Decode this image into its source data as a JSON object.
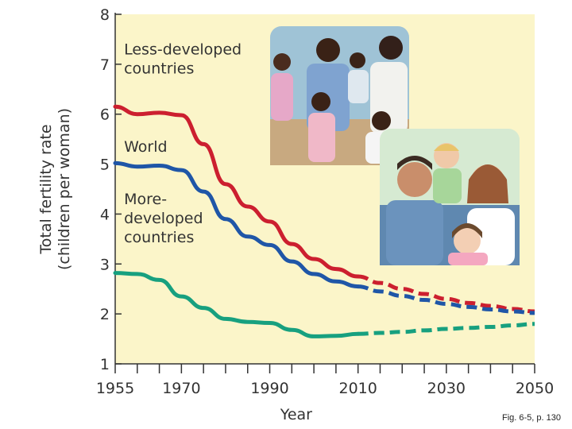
{
  "chart_data": {
    "type": "line",
    "xlabel": "Year",
    "ylabel": [
      "Total fertility rate",
      "(children per woman)"
    ],
    "xlim": [
      1955,
      2050
    ],
    "ylim": [
      1,
      8
    ],
    "x_ticks": [
      1955,
      1970,
      1990,
      2010,
      2030,
      2050
    ],
    "y_ticks": [
      1,
      2,
      3,
      4,
      5,
      6,
      7,
      8
    ],
    "projection_start": 2010,
    "series": [
      {
        "name": "Less-developed countries",
        "label_lines": [
          "Less-developed",
          "countries"
        ],
        "color": "#cc1f2f",
        "x": [
          1955,
          1960,
          1965,
          1970,
          1975,
          1980,
          1985,
          1990,
          1995,
          2000,
          2005,
          2010,
          2015,
          2020,
          2025,
          2030,
          2035,
          2040,
          2045,
          2050
        ],
        "values": [
          6.15,
          6.0,
          6.03,
          5.98,
          5.4,
          4.6,
          4.15,
          3.85,
          3.4,
          3.1,
          2.9,
          2.75,
          2.62,
          2.5,
          2.4,
          2.3,
          2.22,
          2.16,
          2.1,
          2.05
        ]
      },
      {
        "name": "World",
        "label_lines": [
          "World"
        ],
        "color": "#1f56a7",
        "x": [
          1955,
          1960,
          1965,
          1970,
          1975,
          1980,
          1985,
          1990,
          1995,
          2000,
          2005,
          2010,
          2015,
          2020,
          2025,
          2030,
          2035,
          2040,
          2045,
          2050
        ],
        "values": [
          5.02,
          4.95,
          4.97,
          4.88,
          4.45,
          3.9,
          3.55,
          3.38,
          3.05,
          2.8,
          2.65,
          2.55,
          2.45,
          2.36,
          2.28,
          2.2,
          2.14,
          2.09,
          2.05,
          2.02
        ]
      },
      {
        "name": "More-developed countries",
        "label_lines": [
          "More-",
          "developed",
          "countries"
        ],
        "color": "#17a07f",
        "x": [
          1955,
          1960,
          1965,
          1970,
          1975,
          1980,
          1985,
          1990,
          1995,
          2000,
          2005,
          2010,
          2015,
          2020,
          2025,
          2030,
          2035,
          2040,
          2045,
          2050
        ],
        "values": [
          2.82,
          2.8,
          2.68,
          2.35,
          2.12,
          1.9,
          1.84,
          1.82,
          1.68,
          1.55,
          1.56,
          1.6,
          1.62,
          1.64,
          1.67,
          1.7,
          1.72,
          1.74,
          1.77,
          1.8
        ]
      }
    ]
  },
  "caption": "Fig. 6-5, p. 130"
}
